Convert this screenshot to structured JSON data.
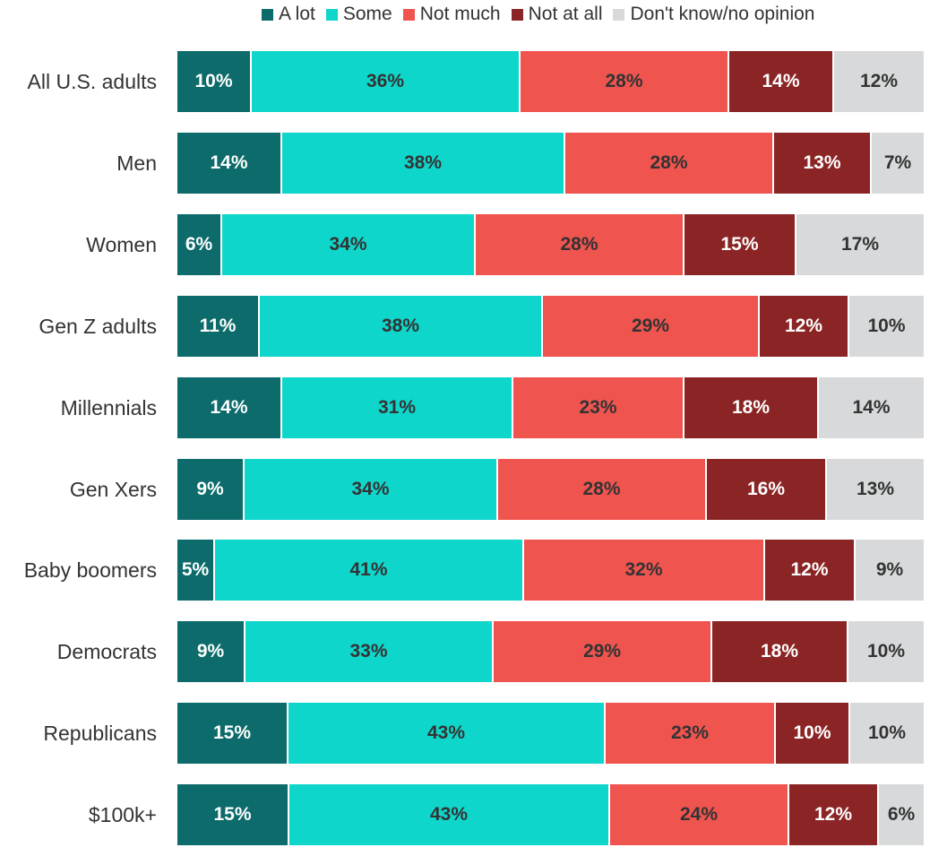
{
  "chart_data": {
    "type": "bar",
    "orientation": "horizontal",
    "stacked": true,
    "legend_position": "top",
    "series": [
      {
        "name": "A lot",
        "color": "#0d6b6b",
        "text_color": "#ffffff"
      },
      {
        "name": "Some",
        "color": "#0fd6cb",
        "text_color": "#333333"
      },
      {
        "name": "Not much",
        "color": "#f0544f",
        "text_color": "#333333"
      },
      {
        "name": "Not at all",
        "color": "#8b2525",
        "text_color": "#ffffff"
      },
      {
        "name": "Don't know/no opinion",
        "color": "#d7d9da",
        "text_color": "#333333"
      }
    ],
    "categories": [
      "All U.S. adults",
      "Men",
      "Women",
      "Gen Z adults",
      "Millennials",
      "Gen Xers",
      "Baby boomers",
      "Democrats",
      "Republicans",
      "$100k+"
    ],
    "values": [
      [
        10,
        36,
        28,
        14,
        12
      ],
      [
        14,
        38,
        28,
        13,
        7
      ],
      [
        6,
        34,
        28,
        15,
        17
      ],
      [
        11,
        38,
        29,
        12,
        10
      ],
      [
        14,
        31,
        23,
        18,
        14
      ],
      [
        9,
        34,
        28,
        16,
        13
      ],
      [
        5,
        41,
        32,
        12,
        9
      ],
      [
        9,
        33,
        29,
        18,
        10
      ],
      [
        15,
        43,
        23,
        10,
        10
      ],
      [
        15,
        43,
        24,
        12,
        6
      ]
    ],
    "value_suffix": "%"
  }
}
